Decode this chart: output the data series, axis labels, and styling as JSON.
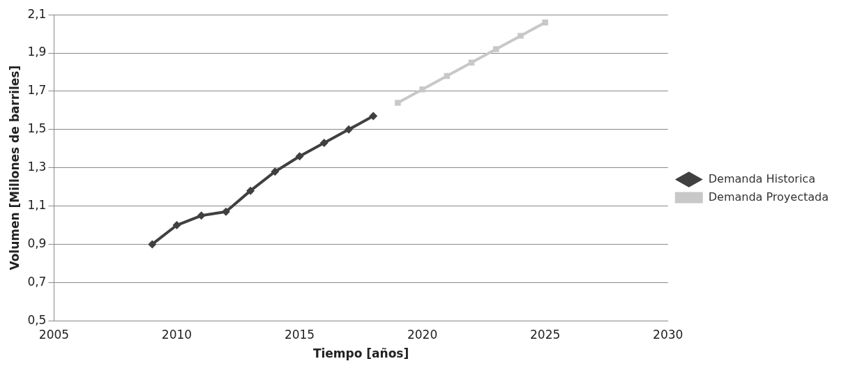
{
  "chart_data": {
    "type": "line",
    "xlabel": "Tiempo [años]",
    "ylabel": "Volumen [Millones de barriles]",
    "xlim": [
      2005,
      2030
    ],
    "xticks": [
      2005,
      2010,
      2015,
      2020,
      2025,
      2030
    ],
    "ylim": [
      0.5,
      2.1
    ],
    "yticks": [
      {
        "value": 0.5,
        "label": "0,5"
      },
      {
        "value": 0.7,
        "label": "0,7"
      },
      {
        "value": 0.9,
        "label": "0,9"
      },
      {
        "value": 1.1,
        "label": "1,1"
      },
      {
        "value": 1.3,
        "label": "1,3"
      },
      {
        "value": 1.5,
        "label": "1,5"
      },
      {
        "value": 1.7,
        "label": "1,7"
      },
      {
        "value": 1.9,
        "label": "1,9"
      },
      {
        "value": 2.1,
        "label": "2,1"
      }
    ],
    "grid": "y",
    "legend": "right",
    "series": [
      {
        "name": "Demanda Historica",
        "color": "#404040",
        "marker": "diamond",
        "x": [
          2009,
          2010,
          2011,
          2012,
          2013,
          2014,
          2015,
          2016,
          2017,
          2018
        ],
        "values": [
          0.9,
          1.0,
          1.05,
          1.07,
          1.18,
          1.28,
          1.36,
          1.43,
          1.5,
          1.57
        ]
      },
      {
        "name": "Demanda Proyectada",
        "color": "#c8c8c8",
        "marker": "square",
        "x": [
          2019,
          2020,
          2021,
          2022,
          2023,
          2024,
          2025
        ],
        "values": [
          1.64,
          1.71,
          1.78,
          1.85,
          1.92,
          1.99,
          2.06
        ]
      }
    ]
  }
}
